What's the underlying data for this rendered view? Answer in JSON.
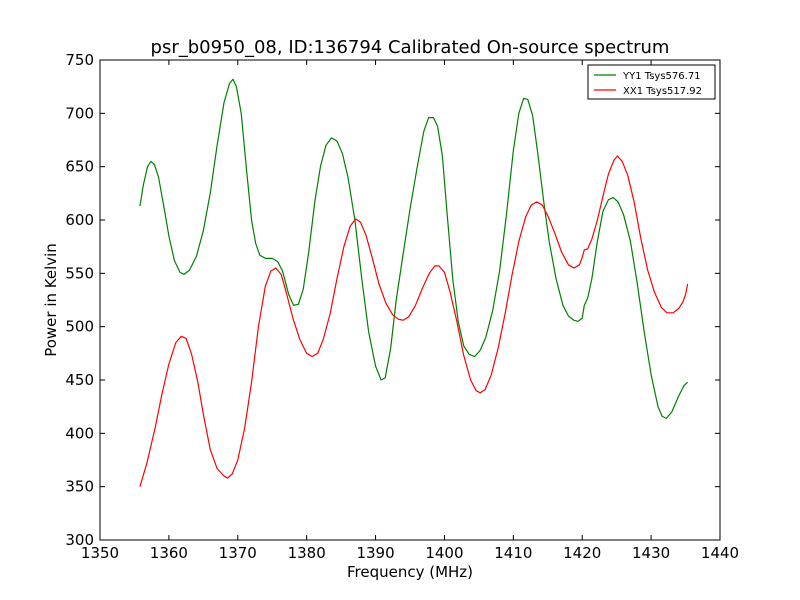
{
  "chart_data": {
    "type": "line",
    "title": "psr_b0950_08, ID:136794 Calibrated On-source spectrum",
    "xlabel": "Frequency (MHz)",
    "ylabel": "Power in Kelvin",
    "xlim": [
      1350,
      1440
    ],
    "ylim": [
      300,
      750
    ],
    "xticks": [
      1350,
      1360,
      1370,
      1380,
      1390,
      1400,
      1410,
      1420,
      1430,
      1440
    ],
    "yticks": [
      300,
      350,
      400,
      450,
      500,
      550,
      600,
      650,
      700,
      750
    ],
    "legend_position": "top-right",
    "series": [
      {
        "name": "YY1 Tsys576.71",
        "color": "#008000",
        "points": [
          [
            1355.8,
            613
          ],
          [
            1356.3,
            633
          ],
          [
            1356.9,
            650
          ],
          [
            1357.4,
            655
          ],
          [
            1357.9,
            652
          ],
          [
            1358.5,
            640
          ],
          [
            1359.2,
            615
          ],
          [
            1360.0,
            585
          ],
          [
            1360.8,
            562
          ],
          [
            1361.6,
            551
          ],
          [
            1362.2,
            549
          ],
          [
            1363.0,
            553
          ],
          [
            1364.0,
            566
          ],
          [
            1365.0,
            590
          ],
          [
            1366.0,
            625
          ],
          [
            1367.0,
            670
          ],
          [
            1368.0,
            710
          ],
          [
            1368.8,
            728
          ],
          [
            1369.3,
            732
          ],
          [
            1369.8,
            725
          ],
          [
            1370.5,
            700
          ],
          [
            1371.3,
            645
          ],
          [
            1372.0,
            600
          ],
          [
            1372.6,
            578
          ],
          [
            1373.2,
            567
          ],
          [
            1374.0,
            564
          ],
          [
            1375.0,
            564
          ],
          [
            1375.8,
            561
          ],
          [
            1376.5,
            552
          ],
          [
            1377.4,
            530
          ],
          [
            1378.1,
            520
          ],
          [
            1378.8,
            521
          ],
          [
            1379.5,
            535
          ],
          [
            1380.3,
            570
          ],
          [
            1381.2,
            618
          ],
          [
            1382.0,
            650
          ],
          [
            1382.8,
            670
          ],
          [
            1383.6,
            677
          ],
          [
            1384.4,
            674
          ],
          [
            1385.2,
            662
          ],
          [
            1386.0,
            640
          ],
          [
            1387.0,
            600
          ],
          [
            1388.0,
            545
          ],
          [
            1389.0,
            495
          ],
          [
            1390.0,
            463
          ],
          [
            1390.8,
            450
          ],
          [
            1391.4,
            452
          ],
          [
            1392.2,
            480
          ],
          [
            1393.0,
            525
          ],
          [
            1394.0,
            568
          ],
          [
            1395.0,
            610
          ],
          [
            1396.0,
            648
          ],
          [
            1397.0,
            683
          ],
          [
            1397.7,
            696
          ],
          [
            1398.4,
            696
          ],
          [
            1399.0,
            688
          ],
          [
            1399.7,
            660
          ],
          [
            1400.4,
            605
          ],
          [
            1401.2,
            545
          ],
          [
            1402.0,
            505
          ],
          [
            1402.8,
            482
          ],
          [
            1403.6,
            474
          ],
          [
            1404.4,
            472
          ],
          [
            1405.2,
            478
          ],
          [
            1406.0,
            490
          ],
          [
            1407.0,
            515
          ],
          [
            1408.0,
            552
          ],
          [
            1409.0,
            605
          ],
          [
            1410.0,
            665
          ],
          [
            1410.8,
            700
          ],
          [
            1411.5,
            714
          ],
          [
            1412.1,
            713
          ],
          [
            1412.8,
            698
          ],
          [
            1413.6,
            660
          ],
          [
            1414.4,
            618
          ],
          [
            1415.2,
            580
          ],
          [
            1416.2,
            545
          ],
          [
            1417.2,
            520
          ],
          [
            1418.0,
            510
          ],
          [
            1418.8,
            506
          ],
          [
            1419.4,
            505
          ],
          [
            1420.0,
            508
          ],
          [
            1420.3,
            520
          ],
          [
            1420.8,
            527
          ],
          [
            1421.4,
            545
          ],
          [
            1422.2,
            580
          ],
          [
            1423.0,
            608
          ],
          [
            1423.8,
            619
          ],
          [
            1424.5,
            621
          ],
          [
            1425.2,
            617
          ],
          [
            1426.0,
            605
          ],
          [
            1427.0,
            580
          ],
          [
            1428.0,
            540
          ],
          [
            1429.0,
            495
          ],
          [
            1430.0,
            455
          ],
          [
            1431.0,
            425
          ],
          [
            1431.6,
            416
          ],
          [
            1432.2,
            414
          ],
          [
            1433.0,
            420
          ],
          [
            1434.0,
            435
          ],
          [
            1434.8,
            445
          ],
          [
            1435.3,
            448
          ]
        ]
      },
      {
        "name": "XX1 Tsys517.92",
        "color": "#ff0000",
        "points": [
          [
            1355.8,
            350
          ],
          [
            1356.8,
            372
          ],
          [
            1358.0,
            405
          ],
          [
            1359.0,
            437
          ],
          [
            1360.0,
            465
          ],
          [
            1361.0,
            485
          ],
          [
            1361.8,
            491
          ],
          [
            1362.5,
            489
          ],
          [
            1363.3,
            474
          ],
          [
            1364.2,
            448
          ],
          [
            1365.0,
            418
          ],
          [
            1366.0,
            385
          ],
          [
            1367.0,
            367
          ],
          [
            1368.0,
            360
          ],
          [
            1368.5,
            358
          ],
          [
            1369.2,
            362
          ],
          [
            1370.0,
            375
          ],
          [
            1371.0,
            405
          ],
          [
            1372.0,
            448
          ],
          [
            1373.0,
            500
          ],
          [
            1374.0,
            538
          ],
          [
            1374.8,
            552
          ],
          [
            1375.5,
            555
          ],
          [
            1376.3,
            549
          ],
          [
            1377.0,
            533
          ],
          [
            1378.0,
            508
          ],
          [
            1379.0,
            488
          ],
          [
            1380.0,
            475
          ],
          [
            1380.8,
            472
          ],
          [
            1381.6,
            475
          ],
          [
            1382.4,
            488
          ],
          [
            1383.4,
            512
          ],
          [
            1384.4,
            545
          ],
          [
            1385.4,
            575
          ],
          [
            1386.3,
            594
          ],
          [
            1387.1,
            601
          ],
          [
            1387.8,
            598
          ],
          [
            1388.6,
            586
          ],
          [
            1389.5,
            565
          ],
          [
            1390.5,
            540
          ],
          [
            1391.5,
            522
          ],
          [
            1392.5,
            511
          ],
          [
            1393.3,
            507
          ],
          [
            1394.0,
            506
          ],
          [
            1394.8,
            509
          ],
          [
            1395.8,
            520
          ],
          [
            1396.8,
            536
          ],
          [
            1397.8,
            550
          ],
          [
            1398.6,
            557
          ],
          [
            1399.2,
            557
          ],
          [
            1400.0,
            551
          ],
          [
            1400.8,
            533
          ],
          [
            1401.8,
            505
          ],
          [
            1402.8,
            473
          ],
          [
            1403.8,
            450
          ],
          [
            1404.6,
            440
          ],
          [
            1405.2,
            438
          ],
          [
            1405.9,
            441
          ],
          [
            1406.8,
            455
          ],
          [
            1407.8,
            480
          ],
          [
            1408.8,
            512
          ],
          [
            1409.8,
            548
          ],
          [
            1410.8,
            580
          ],
          [
            1411.8,
            603
          ],
          [
            1412.6,
            614
          ],
          [
            1413.4,
            617
          ],
          [
            1414.2,
            614
          ],
          [
            1415.0,
            604
          ],
          [
            1416.0,
            588
          ],
          [
            1417.0,
            570
          ],
          [
            1418.0,
            558
          ],
          [
            1418.8,
            555
          ],
          [
            1419.6,
            558
          ],
          [
            1420.0,
            565
          ],
          [
            1420.3,
            572
          ],
          [
            1420.8,
            573
          ],
          [
            1421.4,
            582
          ],
          [
            1422.2,
            600
          ],
          [
            1423.0,
            622
          ],
          [
            1423.8,
            643
          ],
          [
            1424.6,
            656
          ],
          [
            1425.1,
            660
          ],
          [
            1425.8,
            655
          ],
          [
            1426.6,
            642
          ],
          [
            1427.5,
            618
          ],
          [
            1428.5,
            583
          ],
          [
            1429.5,
            553
          ],
          [
            1430.5,
            532
          ],
          [
            1431.5,
            518
          ],
          [
            1432.3,
            513
          ],
          [
            1433.2,
            513
          ],
          [
            1434.0,
            517
          ],
          [
            1434.6,
            523
          ],
          [
            1435.0,
            530
          ],
          [
            1435.3,
            540
          ]
        ]
      }
    ]
  }
}
